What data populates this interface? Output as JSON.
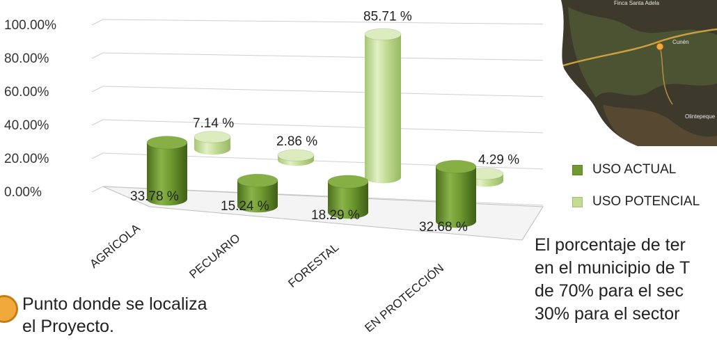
{
  "chart_data": {
    "type": "bar",
    "title": "",
    "xlabel": "",
    "ylabel": "",
    "ylim": [
      0,
      100
    ],
    "y_ticks": [
      "0.00%",
      "20.00%",
      "40.00%",
      "60.00%",
      "80.00%",
      "100.00%"
    ],
    "grid": true,
    "categories": [
      "AGRÍCOLA",
      "PECUARIO",
      "FORESTAL",
      "EN PROTECCIÓN"
    ],
    "series": [
      {
        "name": "USO ACTUAL",
        "color": "#6e9a2f",
        "values": [
          33.78,
          15.24,
          18.29,
          32.68
        ],
        "labels": [
          "33.78 %",
          "15.24 %",
          "18.29 %",
          "32.68 %"
        ]
      },
      {
        "name": "USO POTENCIAL",
        "color": "#c2dc92",
        "values": [
          7.14,
          2.86,
          85.71,
          4.29
        ],
        "labels": [
          "7.14 %",
          "2.86 %",
          "85.71 %",
          "4.29 %"
        ]
      }
    ],
    "legend_position": "right"
  },
  "map": {
    "town_labels": [
      "Finca Santa Adela",
      "Cunén",
      "Olintepeque"
    ],
    "road_color": "#c9a13e",
    "marker_color": "#f2a93b"
  },
  "legend": {
    "items": [
      {
        "label": "USO ACTUAL",
        "color": "#6e9a2f"
      },
      {
        "label": "USO POTENCIAL",
        "color": "#c2dc92"
      }
    ]
  },
  "note": {
    "lines": [
      "El porcentaje de ter",
      "en el municipio de T",
      "de 70% para el sec",
      "30% para el sector"
    ]
  },
  "caption": {
    "lines": [
      "Punto donde se localiza",
      "el Proyecto."
    ]
  }
}
